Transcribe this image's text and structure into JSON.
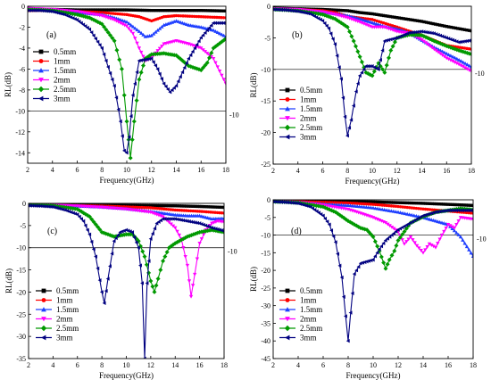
{
  "figure_panels": [
    "a",
    "b",
    "c",
    "d"
  ],
  "series_colors": [
    "#000000",
    "#ff0000",
    "#1f3fff",
    "#ff00ff",
    "#009900",
    "#000080"
  ],
  "marker_shapes": [
    "square",
    "circle",
    "triangle-up",
    "triangle-down",
    "diamond",
    "triangle-left"
  ],
  "chart_data": [
    {
      "type": "line",
      "panel_label": "(a)",
      "xlabel": "Frequency(GHz)",
      "ylabel": "RL(dB)",
      "xlim": [
        2,
        18
      ],
      "ylim": [
        -15,
        0
      ],
      "xticks": [
        "2",
        "4",
        "6",
        "8",
        "10",
        "12",
        "14",
        "16",
        "18"
      ],
      "yticks": [
        "0",
        "-2",
        "-4",
        "-6",
        "-8",
        "-10",
        "-12",
        "-14"
      ],
      "ytick_values": [
        0,
        -2,
        -4,
        -6,
        -8,
        -10,
        -12,
        -14
      ],
      "reference_line": {
        "y": -10,
        "label": "-10"
      },
      "legend_position": "left-middle",
      "series": [
        {
          "name": "0.5mm",
          "x": [
            2,
            4,
            6,
            8,
            10,
            12,
            14,
            16,
            18
          ],
          "y": [
            -0.3,
            -0.3,
            -0.35,
            -0.35,
            -0.35,
            -0.4,
            -0.4,
            -0.4,
            -0.45
          ]
        },
        {
          "name": "1mm",
          "x": [
            2,
            4,
            6,
            8,
            10,
            11,
            12,
            13,
            14,
            16,
            18
          ],
          "y": [
            -0.4,
            -0.4,
            -0.5,
            -0.6,
            -0.8,
            -1.0,
            -1.4,
            -1.0,
            -0.9,
            -1.0,
            -1.1
          ]
        },
        {
          "name": "1.5mm",
          "x": [
            2,
            4,
            6,
            8,
            9,
            10,
            11,
            11.5,
            12,
            13,
            14,
            15,
            16,
            17,
            18
          ],
          "y": [
            -0.3,
            -0.4,
            -0.6,
            -0.8,
            -1.1,
            -1.5,
            -2.4,
            -2.9,
            -2.8,
            -1.8,
            -1.4,
            -1.8,
            -2.0,
            -2.3,
            -2.9
          ]
        },
        {
          "name": "2mm",
          "x": [
            2,
            4,
            6,
            8,
            9,
            10,
            10.5,
            11,
            11.5,
            12,
            13,
            14,
            15,
            16,
            17,
            18
          ],
          "y": [
            -0.2,
            -0.3,
            -0.5,
            -0.9,
            -1.3,
            -1.9,
            -2.6,
            -4.0,
            -5.2,
            -4.9,
            -3.6,
            -3.3,
            -3.6,
            -4.0,
            -5.0,
            -7.4
          ]
        },
        {
          "name": "2.5mm",
          "x": [
            2,
            4,
            6,
            7,
            8,
            9,
            9.6,
            10,
            10.3,
            10.6,
            11,
            11.5,
            12,
            13,
            14,
            15,
            16,
            16.5,
            17,
            18
          ],
          "y": [
            -0.3,
            -0.4,
            -0.8,
            -1.1,
            -1.7,
            -3.3,
            -6.0,
            -11.0,
            -14.5,
            -11.0,
            -7.0,
            -5.0,
            -4.6,
            -4.5,
            -4.7,
            -5.7,
            -6.1,
            -5.4,
            -4.0,
            -3.1
          ]
        },
        {
          "name": "3mm",
          "x": [
            2,
            3,
            4,
            5,
            6,
            7,
            8,
            9,
            9.5,
            9.8,
            10,
            10.2,
            10.5,
            11,
            12,
            12.5,
            13,
            13.5,
            14,
            15,
            16,
            17,
            18
          ],
          "y": [
            -0.4,
            -0.4,
            -0.5,
            -0.8,
            -1.3,
            -2.2,
            -4.0,
            -7.6,
            -11.0,
            -13.8,
            -14.0,
            -12.5,
            -8.5,
            -5.2,
            -5.0,
            -6.0,
            -7.4,
            -8.2,
            -7.6,
            -5.0,
            -3.0,
            -1.6,
            -1.6
          ]
        }
      ]
    },
    {
      "type": "line",
      "panel_label": "(b)",
      "xlabel": "Frequency(GHz)",
      "ylabel": "RL(dB)",
      "xlim": [
        2,
        18
      ],
      "ylim": [
        -25,
        0
      ],
      "xticks": [
        "2",
        "4",
        "6",
        "8",
        "10",
        "12",
        "14",
        "16",
        "18"
      ],
      "yticks": [
        "0",
        "-5",
        "-10",
        "-15",
        "-20",
        "-25"
      ],
      "ytick_values": [
        0,
        -5,
        -10,
        -15,
        -20,
        -25
      ],
      "reference_line": {
        "y": -10,
        "label": "-10"
      },
      "legend_position": "left-middle",
      "series": [
        {
          "name": "0.5mm",
          "x": [
            2,
            4,
            6,
            8,
            9,
            10,
            12,
            14,
            16,
            18
          ],
          "y": [
            -0.3,
            -0.4,
            -0.5,
            -0.7,
            -1.0,
            -1.2,
            -1.8,
            -2.4,
            -3.2,
            -3.9
          ]
        },
        {
          "name": "1mm",
          "x": [
            2,
            4,
            6,
            7,
            8,
            10,
            12,
            14,
            16,
            18
          ],
          "y": [
            -0.4,
            -0.5,
            -0.7,
            -1.0,
            -1.6,
            -2.1,
            -3.3,
            -4.6,
            -6.2,
            -6.8
          ]
        },
        {
          "name": "1.5mm",
          "x": [
            2,
            4,
            6,
            8,
            9,
            10,
            11,
            12,
            13,
            14,
            15,
            16,
            17,
            18
          ],
          "y": [
            -0.4,
            -0.6,
            -0.9,
            -1.5,
            -2.0,
            -2.6,
            -3.2,
            -3.6,
            -4.2,
            -5.4,
            -6.5,
            -7.5,
            -8.5,
            -9.6
          ]
        },
        {
          "name": "2mm",
          "x": [
            2,
            4,
            6,
            7,
            8,
            9,
            10,
            11,
            12,
            13,
            14,
            15,
            16,
            17,
            18
          ],
          "y": [
            -0.4,
            -0.5,
            -0.9,
            -1.3,
            -1.8,
            -2.5,
            -3.3,
            -3.3,
            -4.0,
            -4.3,
            -5.3,
            -6.8,
            -8.2,
            -9.2,
            -10.3
          ]
        },
        {
          "name": "2.5mm",
          "x": [
            2,
            4,
            6,
            7,
            8,
            8.5,
            9,
            9.5,
            10,
            10.5,
            11,
            11.5,
            12,
            13,
            14,
            15,
            16,
            17,
            18
          ],
          "y": [
            -0.5,
            -0.7,
            -1.3,
            -2.0,
            -3.3,
            -5.5,
            -8.0,
            -10.5,
            -11.0,
            -9.0,
            -10.5,
            -7.0,
            -5.0,
            -4.5,
            -4.6,
            -5.5,
            -6.3,
            -7.0,
            -7.6
          ]
        },
        {
          "name": "3mm",
          "x": [
            2,
            3,
            4,
            5,
            6,
            6.5,
            7,
            7.5,
            7.8,
            8,
            8.3,
            8.7,
            9,
            9.5,
            10,
            10.5,
            11,
            12,
            13,
            14,
            15,
            16,
            17,
            18
          ],
          "y": [
            -0.5,
            -0.6,
            -0.8,
            -1.2,
            -2.3,
            -3.5,
            -6.0,
            -11.5,
            -17.5,
            -20.5,
            -18.0,
            -13.5,
            -11.0,
            -9.5,
            -9.5,
            -10.0,
            -5.5,
            -5.0,
            -4.2,
            -4.0,
            -4.3,
            -5.0,
            -5.7,
            -5.4
          ]
        }
      ]
    },
    {
      "type": "line",
      "panel_label": "(c)",
      "xlabel": "Frequency(GHz)",
      "ylabel": "RL(dB)",
      "xlim": [
        2,
        18
      ],
      "ylim": [
        -35,
        0
      ],
      "xticks": [
        "2",
        "4",
        "6",
        "8",
        "10",
        "12",
        "14",
        "16",
        "18"
      ],
      "yticks": [
        "0",
        "-5",
        "-10",
        "-15",
        "-20",
        "-25",
        "-30",
        "-35"
      ],
      "ytick_values": [
        0,
        -5,
        -10,
        -15,
        -20,
        -25,
        -30,
        -35
      ],
      "reference_line": {
        "y": -10,
        "label": "-10"
      },
      "legend_position": "left-middle",
      "series": [
        {
          "name": "0.5mm",
          "x": [
            2,
            4,
            6,
            8,
            10,
            12,
            14,
            16,
            18
          ],
          "y": [
            -0.3,
            -0.3,
            -0.35,
            -0.4,
            -0.45,
            -0.5,
            -0.55,
            -0.7,
            -0.9
          ]
        },
        {
          "name": "1mm",
          "x": [
            2,
            4,
            6,
            8,
            10,
            12,
            14,
            16,
            18
          ],
          "y": [
            -0.3,
            -0.4,
            -0.5,
            -0.6,
            -0.8,
            -1.0,
            -1.5,
            -1.8,
            -2.2
          ]
        },
        {
          "name": "1.5mm",
          "x": [
            2,
            4,
            6,
            8,
            10,
            12,
            13,
            14,
            15,
            16,
            17,
            18
          ],
          "y": [
            -0.3,
            -0.4,
            -0.6,
            -0.8,
            -1.2,
            -1.8,
            -2.2,
            -2.6,
            -2.8,
            -2.8,
            -3.5,
            -3.4
          ]
        },
        {
          "name": "2mm",
          "x": [
            2,
            4,
            6,
            8,
            10,
            12,
            13,
            14,
            14.5,
            15,
            15.3,
            15.6,
            16,
            16.5,
            17,
            17.5,
            18
          ],
          "y": [
            -0.3,
            -0.4,
            -0.6,
            -0.9,
            -1.3,
            -2.0,
            -3.0,
            -5.5,
            -8.0,
            -14.0,
            -21.0,
            -16.0,
            -9.0,
            -6.0,
            -4.5,
            -4.0,
            -4.2
          ]
        },
        {
          "name": "2.5mm",
          "x": [
            2,
            4,
            6,
            7,
            8,
            9,
            10,
            10.5,
            11,
            11.5,
            12,
            12.3,
            12.6,
            13,
            13.5,
            14,
            15,
            16,
            17,
            18
          ],
          "y": [
            -0.3,
            -0.5,
            -1.3,
            -3.0,
            -6.5,
            -7.5,
            -7.0,
            -7.0,
            -8.5,
            -12.0,
            -17.5,
            -20.0,
            -17.0,
            -13.0,
            -10.0,
            -9.0,
            -7.5,
            -6.5,
            -6.0,
            -6.5
          ]
        },
        {
          "name": "3mm",
          "x": [
            2,
            3,
            4,
            5,
            6,
            6.5,
            7,
            7.5,
            8,
            8.2,
            8.5,
            9,
            9.5,
            10,
            10.5,
            11,
            11.3,
            11.5,
            11.7,
            12,
            12.5,
            13,
            14,
            15,
            16,
            17,
            18
          ],
          "y": [
            -0.5,
            -0.6,
            -0.8,
            -1.5,
            -2.5,
            -4.0,
            -7.0,
            -12.0,
            -20.0,
            -22.5,
            -17.0,
            -8.5,
            -6.5,
            -6.0,
            -6.5,
            -10.0,
            -18.0,
            -35.0,
            -18.0,
            -8.0,
            -4.5,
            -3.5,
            -3.5,
            -4.0,
            -4.5,
            -5.5,
            -6.2
          ]
        }
      ]
    },
    {
      "type": "line",
      "panel_label": "(d)",
      "xlabel": "Frequency(GHz)",
      "ylabel": "RL(dB)",
      "xlim": [
        2,
        18
      ],
      "ylim": [
        -45,
        0
      ],
      "xticks": [
        "2",
        "4",
        "6",
        "8",
        "10",
        "12",
        "14",
        "16",
        "18"
      ],
      "yticks": [
        "0",
        "-5",
        "-10",
        "-15",
        "-20",
        "-25",
        "-30",
        "-35",
        "-40",
        "-45"
      ],
      "ytick_values": [
        0,
        -5,
        -10,
        -15,
        -20,
        -25,
        -30,
        -35,
        -40,
        -45
      ],
      "reference_line": {
        "y": -10,
        "label": "-10"
      },
      "legend_position": "left-lower",
      "series": [
        {
          "name": "0.5mm",
          "x": [
            2,
            4,
            6,
            8,
            10,
            12,
            14,
            16,
            18
          ],
          "y": [
            -0.3,
            -0.3,
            -0.4,
            -0.5,
            -0.6,
            -0.8,
            -1.0,
            -1.3,
            -1.6
          ]
        },
        {
          "name": "1mm",
          "x": [
            2,
            4,
            6,
            8,
            10,
            12,
            14,
            16,
            18
          ],
          "y": [
            -0.4,
            -0.5,
            -0.7,
            -0.9,
            -1.3,
            -1.9,
            -2.6,
            -3.2,
            -3.8
          ]
        },
        {
          "name": "1.5mm",
          "x": [
            2,
            4,
            6,
            8,
            10,
            12,
            14,
            15,
            16,
            17,
            18
          ],
          "y": [
            -0.5,
            -0.7,
            -1.2,
            -1.6,
            -2.3,
            -3.5,
            -5.0,
            -6.0,
            -7.0,
            -10.5,
            -16.0
          ]
        },
        {
          "name": "2mm",
          "x": [
            2,
            4,
            6,
            8,
            9,
            10,
            11,
            12,
            12.5,
            13,
            13.5,
            14,
            14.5,
            15,
            15.5,
            16,
            16.5,
            17,
            18
          ],
          "y": [
            -0.5,
            -0.7,
            -1.5,
            -2.7,
            -3.8,
            -5.0,
            -6.5,
            -9.0,
            -12.5,
            -10.5,
            -13.0,
            -15.0,
            -12.5,
            -13.5,
            -10.0,
            -7.0,
            -8.0,
            -5.0,
            -5.5
          ]
        },
        {
          "name": "2.5mm",
          "x": [
            2,
            4,
            6,
            7,
            8,
            9,
            9.5,
            10,
            10.5,
            11,
            11.3,
            11.7,
            12,
            12.5,
            13,
            14,
            15,
            16,
            17,
            18
          ],
          "y": [
            -0.5,
            -0.8,
            -2.0,
            -3.5,
            -6.0,
            -8.0,
            -8.5,
            -10.5,
            -14.5,
            -19.5,
            -17.0,
            -14.5,
            -11.5,
            -9.0,
            -6.5,
            -4.8,
            -3.5,
            -3.0,
            -2.5,
            -2.8
          ]
        },
        {
          "name": "3mm",
          "x": [
            2,
            3,
            4,
            5,
            6,
            6.5,
            7,
            7.5,
            7.8,
            8,
            8.2,
            8.5,
            9,
            9.5,
            10,
            10.5,
            11,
            12,
            13,
            14,
            15,
            16,
            17,
            18
          ],
          "y": [
            -0.5,
            -0.7,
            -1.0,
            -2.0,
            -4.5,
            -7.0,
            -12.0,
            -22.0,
            -33.0,
            -40.0,
            -32.0,
            -21.0,
            -18.0,
            -17.5,
            -17.0,
            -14.0,
            -11.5,
            -8.5,
            -6.5,
            -4.5,
            -3.5,
            -3.0,
            -3.0,
            -3.0
          ]
        }
      ]
    }
  ]
}
